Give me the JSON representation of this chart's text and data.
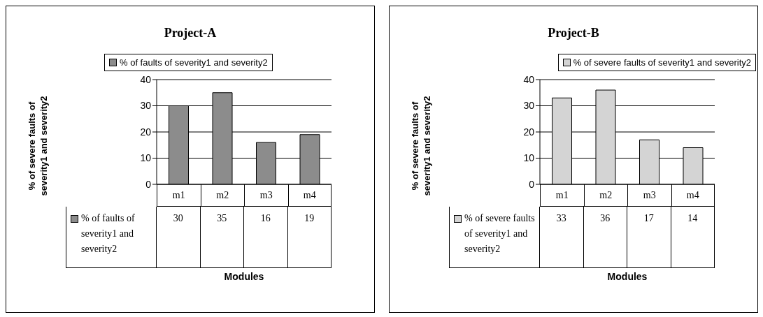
{
  "chart_data": [
    {
      "type": "bar",
      "title": "Project-A",
      "xlabel": "Modules",
      "ylabel": "% of severe faults of severity1 and severity2",
      "categories": [
        "m1",
        "m2",
        "m3",
        "m4"
      ],
      "series": [
        {
          "name": "% of faults of severity1 and severity2",
          "color": "#8c8c8c",
          "values": [
            30,
            35,
            16,
            19
          ]
        }
      ],
      "ylim": [
        0,
        40
      ],
      "yticks": [
        0,
        10,
        20,
        30,
        40
      ],
      "grid": "y",
      "legend": "top",
      "data_labels": true
    },
    {
      "type": "bar",
      "title": "Project-B",
      "xlabel": "Modules",
      "ylabel": "% of severe faults of severity1 and severity2",
      "categories": [
        "m1",
        "m2",
        "m3",
        "m4"
      ],
      "series": [
        {
          "name": "% of severe faults of severity1 and severity2",
          "color": "#d4d4d4",
          "values": [
            33,
            36,
            17,
            14
          ]
        }
      ],
      "ylim": [
        0,
        40
      ],
      "yticks": [
        0,
        10,
        20,
        30,
        40
      ],
      "grid": "y",
      "legend": "top right",
      "data_labels": true
    }
  ]
}
